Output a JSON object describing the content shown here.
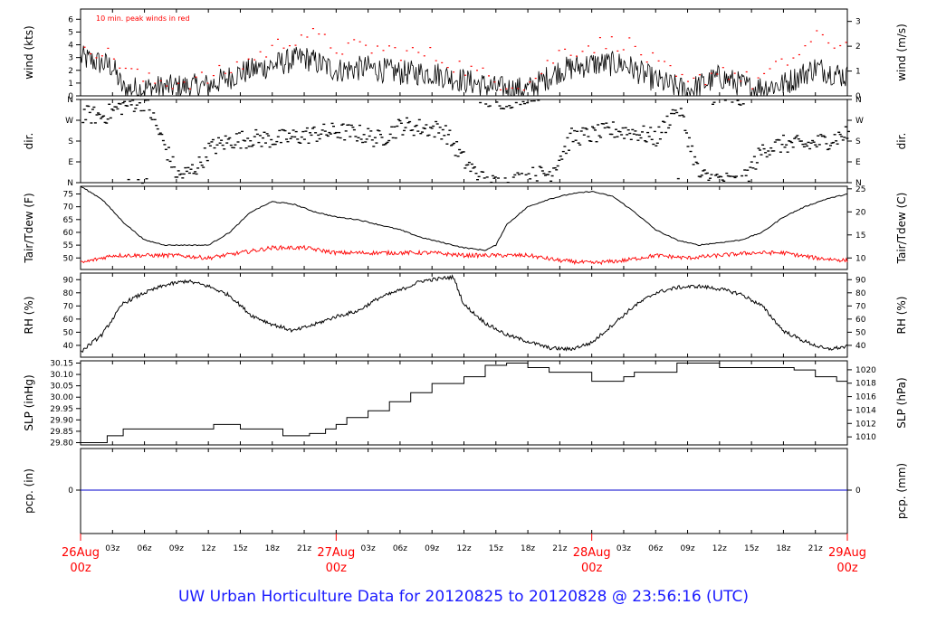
{
  "chart_data": [
    {
      "type": "line",
      "panel": "wind",
      "ylabel_left": "wind (kts)",
      "ylabel_right": "wind (m/s)",
      "annotation": "10 min. peak winds in red",
      "ylim": [
        0,
        6.8
      ],
      "yticks_left": [
        "0",
        "1",
        "2",
        "3",
        "4",
        "5",
        "6"
      ],
      "yticks_right": [
        "0",
        "1",
        "2",
        "3"
      ],
      "series": [
        {
          "role": "wind speed",
          "color": "#000000",
          "x_hours": [
            0,
            3,
            4,
            6,
            9,
            12,
            15,
            18,
            21,
            24,
            27,
            30,
            33,
            36,
            39,
            42,
            45,
            48,
            51,
            54,
            57,
            60,
            63,
            66,
            69,
            72
          ],
          "values": [
            3,
            2.3,
            0.5,
            0.6,
            0.7,
            0.8,
            1.8,
            2.4,
            3,
            2,
            2.2,
            1.8,
            1.8,
            1.2,
            0.6,
            0.5,
            2,
            2.5,
            2.5,
            1.2,
            0.4,
            1.5,
            0.6,
            0.9,
            2.2,
            1.5
          ]
        },
        {
          "role": "10 min. peak winds",
          "color": "#ff0000",
          "x_hours": [
            0,
            3,
            6,
            9,
            12,
            15,
            18,
            21,
            24,
            27,
            30,
            33,
            36,
            39,
            42,
            45,
            48,
            51,
            54,
            57,
            60,
            63,
            66,
            69,
            72
          ],
          "values": [
            4.3,
            3,
            1.2,
            1.1,
            1.4,
            2.5,
            3.8,
            5,
            3.8,
            3.8,
            3.5,
            3.2,
            2.2,
            1.2,
            1,
            3.5,
            4,
            4.3,
            2.5,
            0.8,
            2.2,
            1.1,
            2.5,
            4.5,
            4
          ]
        }
      ]
    },
    {
      "type": "scatter",
      "panel": "direction",
      "ylabel_left": "dir.",
      "ylabel_right": "dir.",
      "yticks": [
        "N",
        "E",
        "S",
        "W",
        "N"
      ],
      "ylim_deg": [
        0,
        360
      ],
      "x_hours": [
        0,
        2,
        4,
        6,
        9,
        10,
        11,
        12,
        14,
        16,
        18,
        20,
        22,
        24,
        26,
        28,
        30,
        32,
        34,
        36,
        38,
        40,
        42,
        44,
        46,
        48,
        50,
        52,
        54,
        56,
        58,
        60,
        62,
        64,
        66,
        68,
        70,
        72
      ],
      "values_deg": [
        300,
        290,
        340,
        355,
        30,
        45,
        80,
        150,
        185,
        195,
        190,
        200,
        215,
        225,
        215,
        190,
        250,
        240,
        230,
        90,
        0,
        0,
        30,
        45,
        200,
        210,
        230,
        220,
        195,
        340,
        30,
        15,
        0,
        150,
        170,
        165,
        185,
        215
      ]
    },
    {
      "type": "line",
      "panel": "temperature",
      "ylabel_left": "Tair/Tdew (F)",
      "ylabel_right": "Tair/Tdew (C)",
      "ylim": [
        45.5,
        78
      ],
      "yticks_left": [
        "50",
        "55",
        "60",
        "65",
        "70",
        "75"
      ],
      "yticks_right": [
        "10",
        "15",
        "20",
        "25"
      ],
      "series": [
        {
          "role": "air temperature",
          "color": "#000000",
          "x_hours": [
            0,
            2,
            4,
            6,
            8,
            10,
            12,
            14,
            16,
            18,
            20,
            22,
            24,
            26,
            28,
            30,
            32,
            34,
            36,
            38,
            39,
            40,
            42,
            44,
            46,
            48,
            50,
            52,
            54,
            56,
            58,
            60,
            62,
            64,
            66,
            68,
            70,
            72
          ],
          "values": [
            78,
            73,
            64,
            57,
            55,
            55,
            55,
            60,
            68,
            72,
            71,
            68,
            66,
            65,
            63,
            61,
            58,
            56,
            54,
            53,
            55,
            63,
            70,
            73,
            75,
            76,
            74,
            68,
            61,
            57,
            55,
            56,
            57,
            60,
            66,
            70,
            73,
            75
          ]
        },
        {
          "role": "dew point",
          "color": "#ff0000",
          "x_hours": [
            0,
            3,
            6,
            9,
            12,
            15,
            18,
            21,
            24,
            27,
            30,
            33,
            36,
            39,
            42,
            45,
            48,
            51,
            54,
            57,
            60,
            63,
            66,
            69,
            72
          ],
          "values": [
            48,
            51,
            51,
            51,
            50,
            52,
            54,
            54,
            52,
            52,
            52,
            52,
            51,
            51,
            51,
            49,
            48,
            49,
            51,
            50,
            51,
            52,
            52,
            50,
            49
          ]
        }
      ]
    },
    {
      "type": "line",
      "panel": "humidity",
      "ylabel_left": "RH (%)",
      "ylabel_right": "RH (%)",
      "ylim": [
        31,
        95
      ],
      "yticks": [
        "40",
        "50",
        "60",
        "70",
        "80",
        "90"
      ],
      "series": [
        {
          "role": "relative humidity",
          "color": "#000000",
          "x_hours": [
            0,
            2,
            4,
            6,
            8,
            10,
            12,
            14,
            16,
            18,
            20,
            22,
            24,
            26,
            28,
            30,
            32,
            34,
            35,
            36,
            38,
            40,
            42,
            44,
            46,
            48,
            50,
            52,
            54,
            56,
            58,
            60,
            62,
            64,
            66,
            68,
            70,
            72
          ],
          "values": [
            35,
            48,
            72,
            80,
            86,
            89,
            85,
            78,
            63,
            56,
            51,
            56,
            62,
            66,
            76,
            82,
            89,
            91,
            92,
            71,
            57,
            48,
            43,
            38,
            37,
            42,
            56,
            70,
            80,
            84,
            85,
            83,
            79,
            70,
            51,
            43,
            37,
            39
          ]
        }
      ]
    },
    {
      "type": "line",
      "panel": "pressure",
      "ylabel_left": "SLP (inHg)",
      "ylabel_right": "SLP (hPa)",
      "ylim": [
        29.79,
        30.16
      ],
      "yticks_left": [
        "29.80",
        "29.85",
        "29.90",
        "29.95",
        "30.00",
        "30.05",
        "30.10",
        "30.15"
      ],
      "yticks_right": [
        "1010",
        "1012",
        "1014",
        "1016",
        "1018",
        "1020"
      ],
      "series": [
        {
          "role": "sea level pressure",
          "color": "#000000",
          "x_hours": [
            0,
            2.5,
            4,
            11,
            12.5,
            15,
            17.5,
            19,
            21.5,
            23,
            24,
            25,
            27,
            29,
            31,
            33,
            36,
            38,
            40,
            42,
            44,
            46,
            48,
            50,
            51,
            52,
            53,
            56,
            58,
            60,
            63,
            66,
            67,
            69,
            71,
            72
          ],
          "values": [
            29.8,
            29.83,
            29.86,
            29.86,
            29.88,
            29.86,
            29.86,
            29.83,
            29.84,
            29.86,
            29.88,
            29.91,
            29.94,
            29.98,
            30.02,
            30.06,
            30.09,
            30.14,
            30.15,
            30.13,
            30.11,
            30.11,
            30.07,
            30.07,
            30.09,
            30.11,
            30.11,
            30.15,
            30.15,
            30.13,
            30.13,
            30.13,
            30.12,
            30.09,
            30.07,
            30.07
          ]
        }
      ]
    },
    {
      "type": "line",
      "panel": "precipitation",
      "ylabel_left": "pcp. (in)",
      "ylabel_right": "pcp. (mm)",
      "yticks_left": [
        "0"
      ],
      "yticks_right": [
        "0"
      ],
      "series": [
        {
          "role": "precipitation",
          "color": "#0000cc",
          "x_hours": [
            0,
            72
          ],
          "values": [
            0,
            0
          ]
        }
      ]
    }
  ],
  "x_axis": {
    "range_hours": [
      0,
      72
    ],
    "minor_labels": [
      {
        "h": 3,
        "label": "03z"
      },
      {
        "h": 6,
        "label": "06z"
      },
      {
        "h": 9,
        "label": "09z"
      },
      {
        "h": 12,
        "label": "12z"
      },
      {
        "h": 15,
        "label": "15z"
      },
      {
        "h": 18,
        "label": "18z"
      },
      {
        "h": 21,
        "label": "21z"
      },
      {
        "h": 27,
        "label": "03z"
      },
      {
        "h": 30,
        "label": "06z"
      },
      {
        "h": 33,
        "label": "09z"
      },
      {
        "h": 36,
        "label": "12z"
      },
      {
        "h": 39,
        "label": "15z"
      },
      {
        "h": 42,
        "label": "18z"
      },
      {
        "h": 45,
        "label": "21z"
      },
      {
        "h": 51,
        "label": "03z"
      },
      {
        "h": 54,
        "label": "06z"
      },
      {
        "h": 57,
        "label": "09z"
      },
      {
        "h": 60,
        "label": "12z"
      },
      {
        "h": 63,
        "label": "15z"
      },
      {
        "h": 66,
        "label": "18z"
      },
      {
        "h": 69,
        "label": "21z"
      }
    ],
    "major_labels": [
      {
        "h": 0,
        "day": "26Aug",
        "time": "00z"
      },
      {
        "h": 24,
        "day": "27Aug",
        "time": "00z"
      },
      {
        "h": 48,
        "day": "28Aug",
        "time": "00z"
      },
      {
        "h": 72,
        "day": "29Aug",
        "time": "00z"
      }
    ]
  },
  "colors": {
    "major_label": "#ff0000",
    "footer": "#1a1aff",
    "precip_line": "#0000cc"
  },
  "footer_title": "UW Urban Horticulture Data for 20120825  to  20120828 @ 23:56:16  (UTC)"
}
